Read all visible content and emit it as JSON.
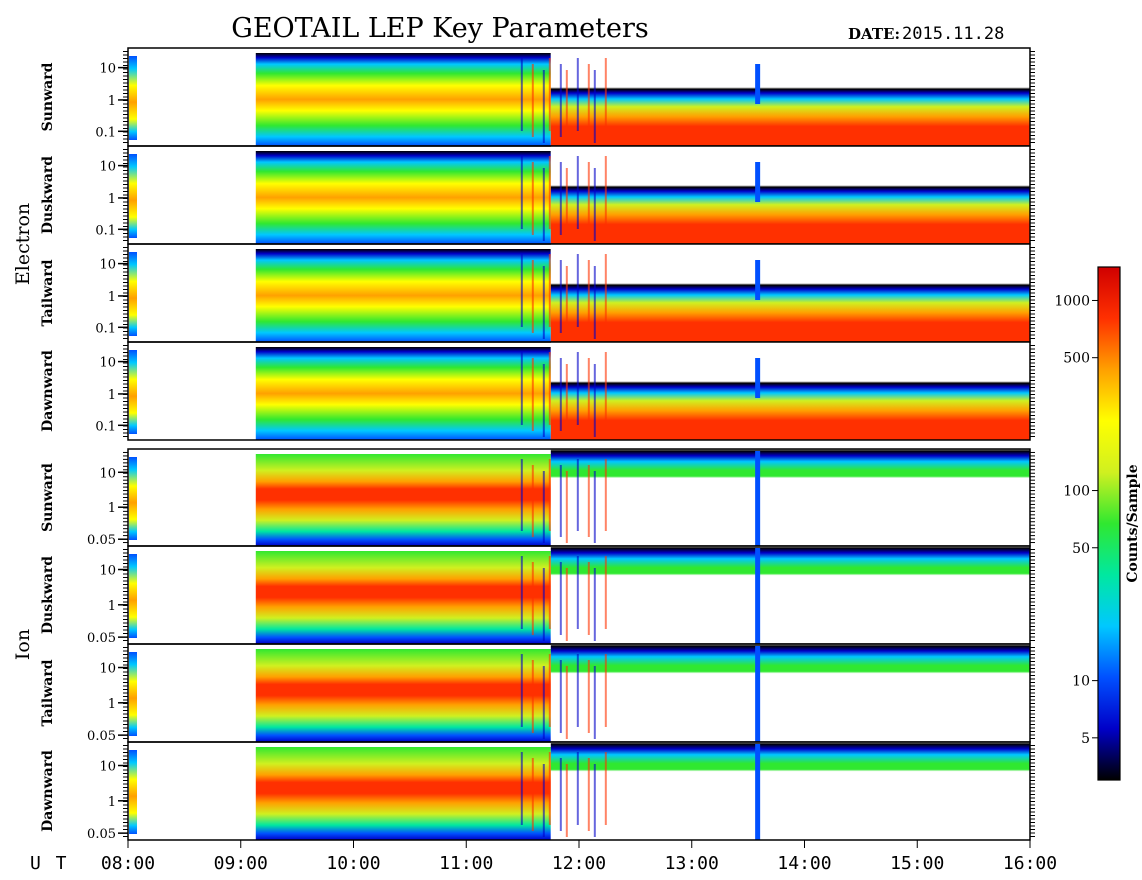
{
  "header": {
    "title": "GEOTAIL LEP Key Parameters",
    "date_label": "DATE:",
    "date_value": "2015.11.28"
  },
  "chart_data": {
    "type": "heatmap",
    "title": "GEOTAIL LEP Key Parameters",
    "date": "2015.11.28",
    "x_axis": {
      "label": "U T",
      "ticks": [
        "08:00",
        "09:00",
        "10:00",
        "11:00",
        "12:00",
        "13:00",
        "14:00",
        "15:00",
        "16:00"
      ],
      "range_hours": [
        8,
        16
      ]
    },
    "groups": [
      {
        "name": "Electron",
        "y_scale": "log",
        "y_ticks": [
          "10",
          "1",
          "0.1"
        ],
        "panels": [
          "Sunward",
          "Duskward",
          "Tailward",
          "Dawnward"
        ]
      },
      {
        "name": "Ion",
        "y_scale": "log",
        "y_ticks": [
          "10",
          "1",
          "0.05"
        ],
        "panels": [
          "Sunward",
          "Duskward",
          "Tailward",
          "Dawnward"
        ]
      }
    ],
    "colorbar": {
      "label": "Counts/Sample",
      "scale": "log",
      "ticks": [
        "1000",
        "500",
        "100",
        "50",
        "10",
        "5"
      ],
      "colors": [
        "#000000",
        "#0000c8",
        "#0050ff",
        "#00c8ff",
        "#00e8a0",
        "#30e830",
        "#d0f020",
        "#ffff00",
        "#ffa000",
        "#ff3000",
        "#d00000"
      ]
    },
    "data_gap_utc": [
      "08:10",
      "09:08"
    ],
    "transition_utc": "11:45"
  }
}
